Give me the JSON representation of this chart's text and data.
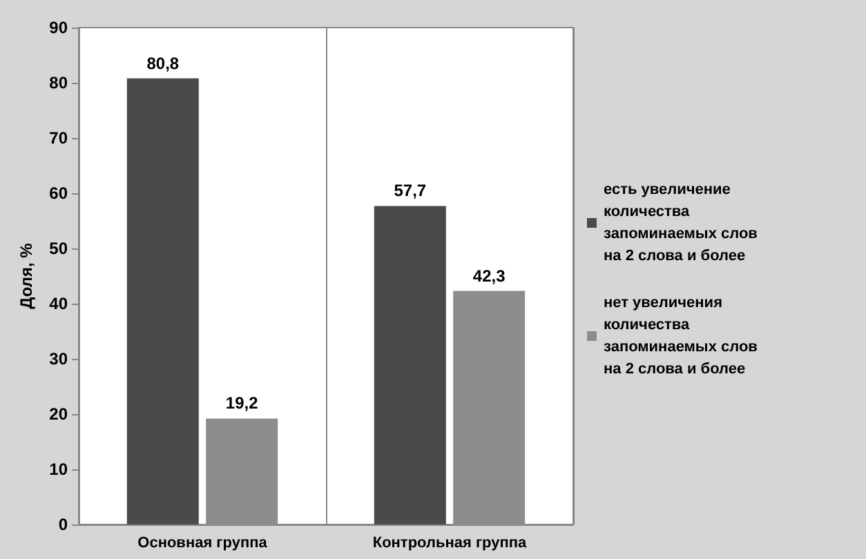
{
  "chart_data": {
    "type": "bar",
    "categories": [
      "Основная группа",
      "Контрольная группа"
    ],
    "series": [
      {
        "name": "есть увеличение количества запоминаемых слов на 2 слова и более",
        "color": "#4a4a4a",
        "values": [
          80.8,
          57.7
        ],
        "value_labels": [
          "80,8",
          "57,7"
        ]
      },
      {
        "name": "нет увеличения количества запоминаемых слов на 2 слова и более",
        "color": "#8c8c8c",
        "values": [
          19.2,
          42.3
        ],
        "value_labels": [
          "19,2",
          "42,3"
        ]
      }
    ],
    "ylabel": "Доля, %",
    "ylim": [
      0,
      90
    ],
    "yticks": [
      0,
      10,
      20,
      30,
      40,
      50,
      60,
      70,
      80,
      90
    ],
    "grid": "x",
    "legend": "right"
  }
}
